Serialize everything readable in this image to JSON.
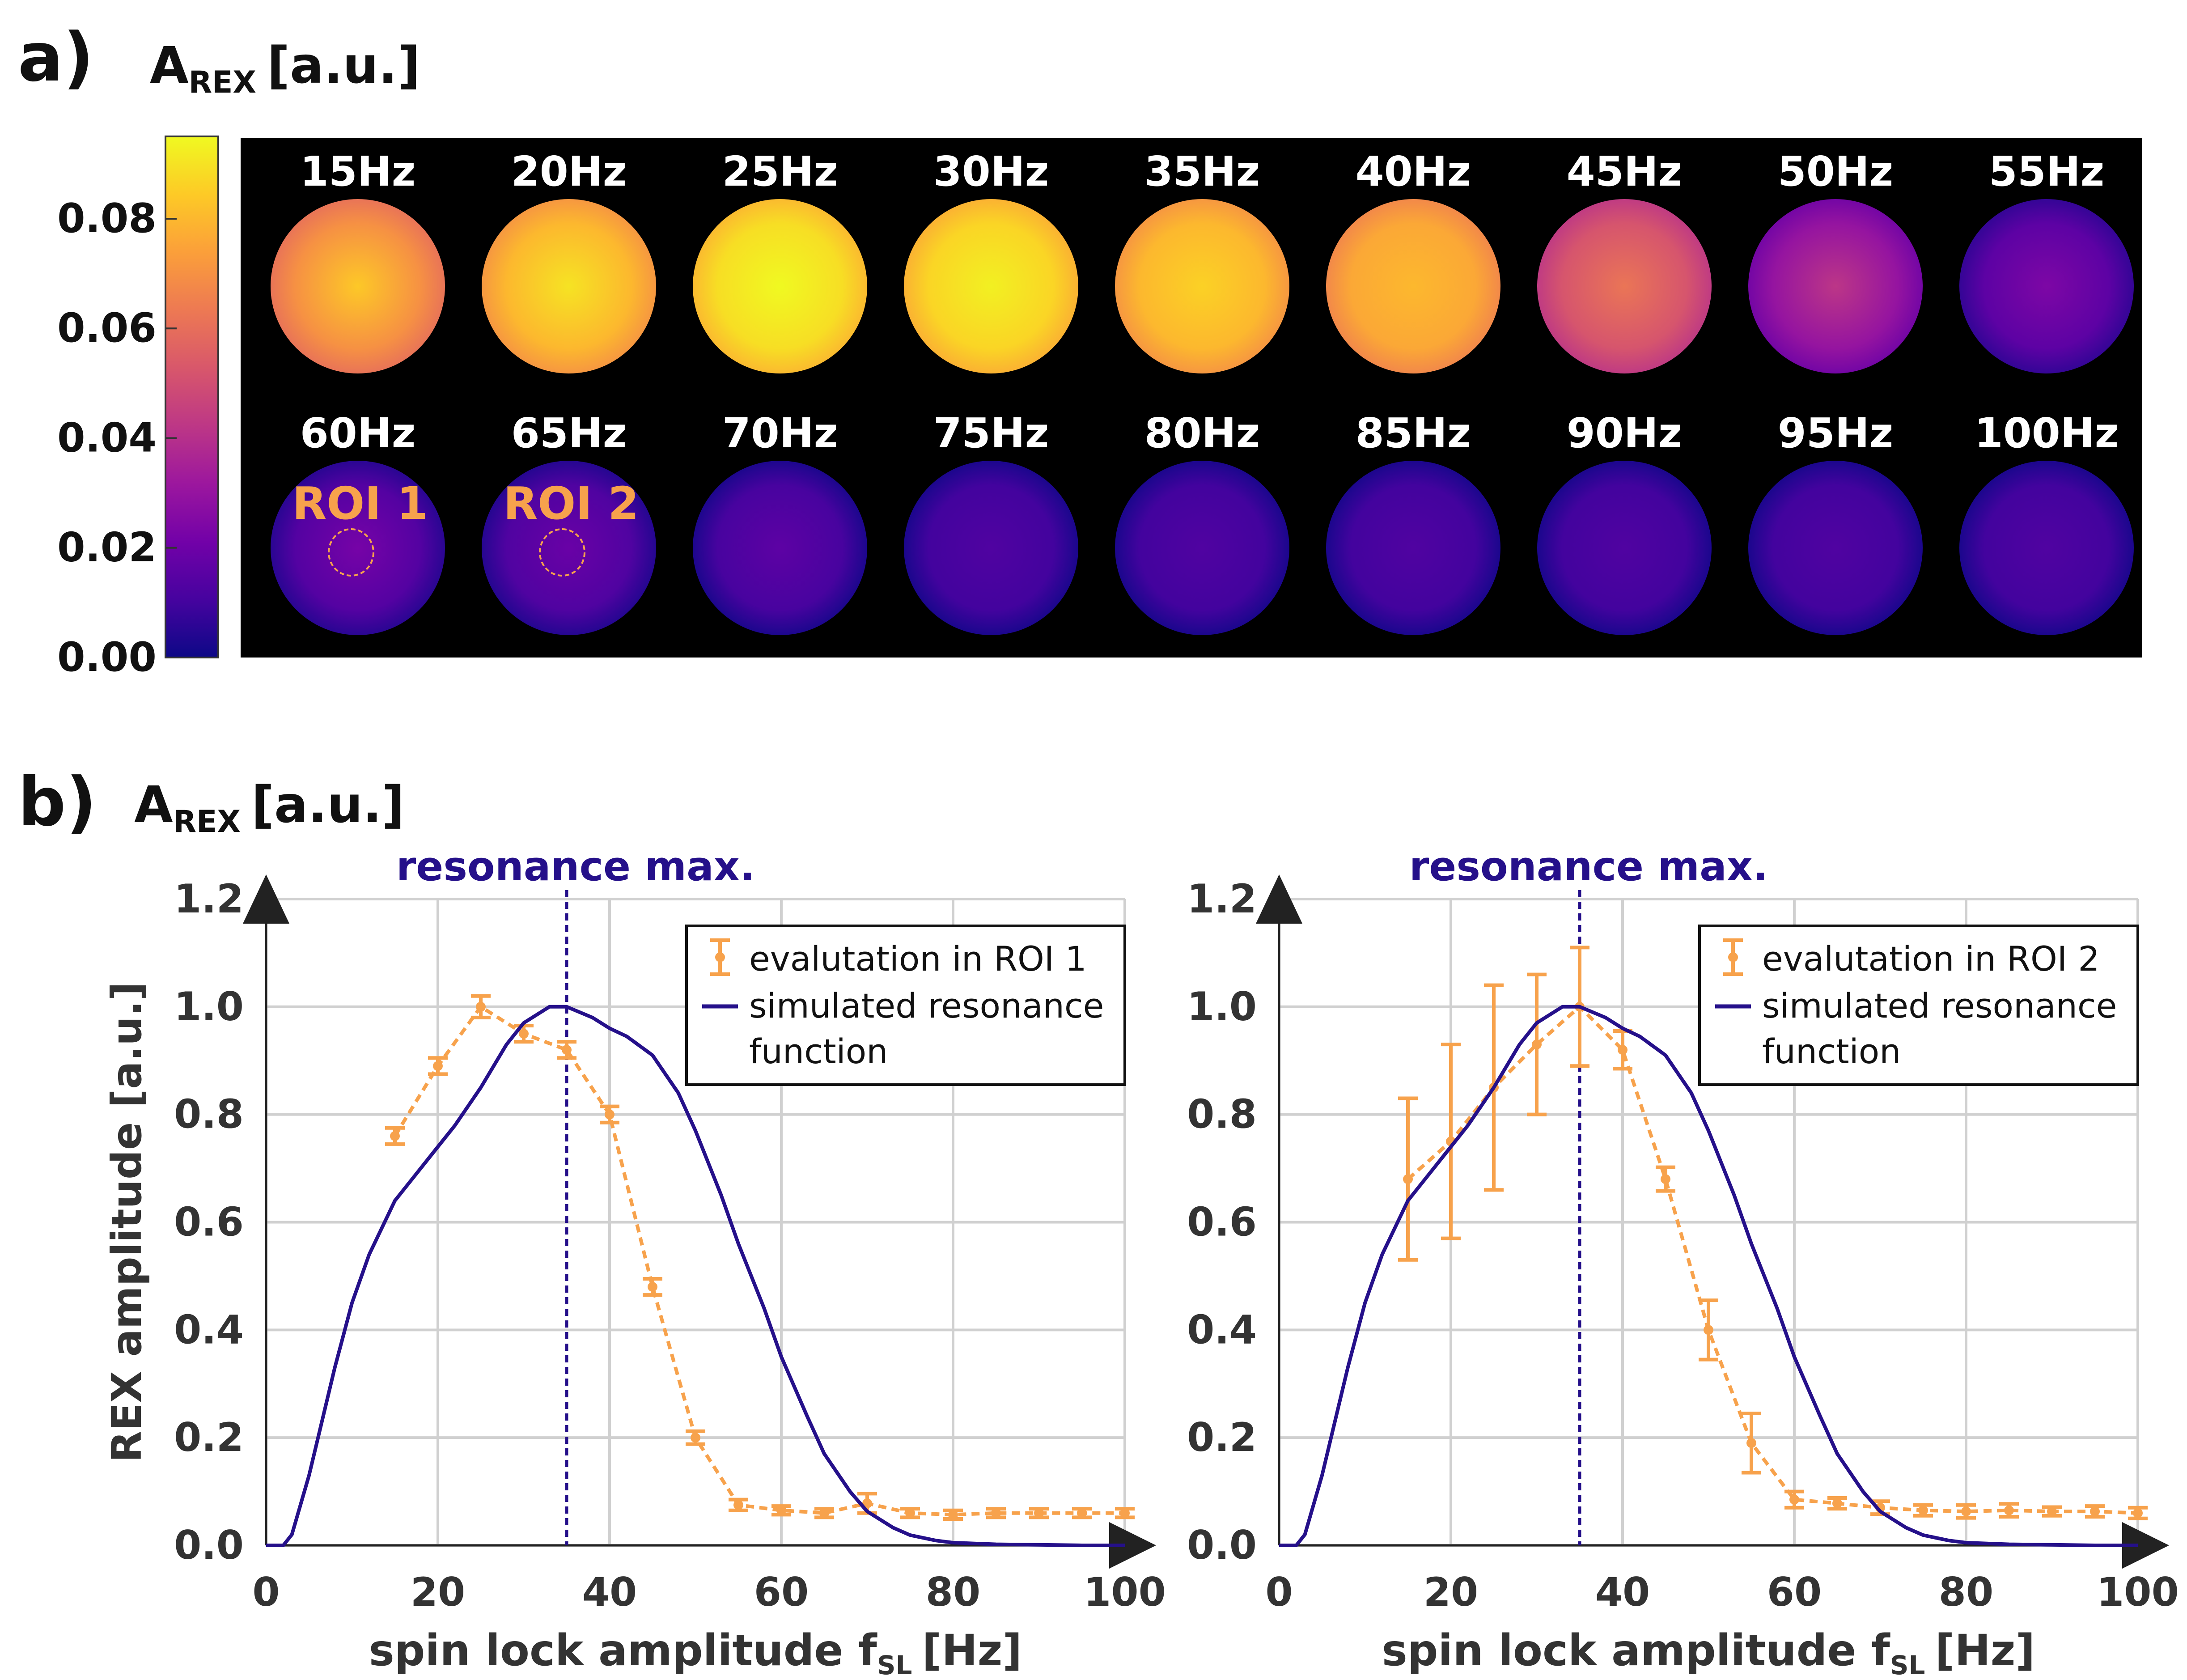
{
  "colors": {
    "orange": "#f7a24c",
    "navy": "#25108a",
    "grid": "#d0d0d0",
    "axis_text": "#333333",
    "panel_bg": "#000000",
    "cmap": [
      "#0d0887",
      "#46039f",
      "#7201a8",
      "#9c179e",
      "#bd3786",
      "#d8576b",
      "#ed7953",
      "#fb9f3a",
      "#fdca26",
      "#f0f921"
    ]
  },
  "panel_a": {
    "label": "a)",
    "quantity_main": "A",
    "quantity_sub": "REX",
    "quantity_unit": "[a.u.]",
    "colorbar_ticks": [
      "0.00",
      "0.02",
      "0.04",
      "0.06",
      "0.08"
    ],
    "colorbar_range": [
      0,
      0.095
    ],
    "row1": [
      {
        "label": "15Hz",
        "value": 0.07,
        "max": 0.084
      },
      {
        "label": "20Hz",
        "value": 0.08,
        "max": 0.09
      },
      {
        "label": "25Hz",
        "value": 0.089,
        "max": 0.097
      },
      {
        "label": "30Hz",
        "value": 0.087,
        "max": 0.093
      },
      {
        "label": "35Hz",
        "value": 0.08,
        "max": 0.086
      },
      {
        "label": "40Hz",
        "value": 0.076,
        "max": 0.08
      },
      {
        "label": "45Hz",
        "value": 0.052,
        "max": 0.062
      },
      {
        "label": "50Hz",
        "value": 0.03,
        "max": 0.042
      },
      {
        "label": "55Hz",
        "value": 0.016,
        "max": 0.024
      }
    ],
    "row2": [
      {
        "label": "60Hz",
        "value": 0.014,
        "max": 0.022
      },
      {
        "label": "65Hz",
        "value": 0.013,
        "max": 0.019
      },
      {
        "label": "70Hz",
        "value": 0.011,
        "max": 0.016
      },
      {
        "label": "75Hz",
        "value": 0.01,
        "max": 0.013
      },
      {
        "label": "80Hz",
        "value": 0.01,
        "max": 0.013
      },
      {
        "label": "85Hz",
        "value": 0.01,
        "max": 0.013
      },
      {
        "label": "90Hz",
        "value": 0.01,
        "max": 0.013
      },
      {
        "label": "95Hz",
        "value": 0.01,
        "max": 0.013
      },
      {
        "label": "100Hz",
        "value": 0.01,
        "max": 0.013
      }
    ],
    "roi_labels": [
      "ROI 1",
      "ROI 2"
    ]
  },
  "panel_b": {
    "label": "b)",
    "quantity_main": "A",
    "quantity_sub": "REX",
    "quantity_unit": "[a.u.]"
  },
  "chart_data": [
    {
      "type": "line",
      "title": "resonance max.",
      "xlabel_main": "spin lock amplitude f",
      "xlabel_sub": "SL",
      "xlabel_unit": "[Hz]",
      "ylabel": "REX amplitude [a.u.]",
      "xlim": [
        0,
        100
      ],
      "ylim": [
        0,
        1.2
      ],
      "xticks": [
        "0",
        "20",
        "40",
        "60",
        "80",
        "100"
      ],
      "yticks": [
        "0.0",
        "0.2",
        "0.4",
        "0.6",
        "0.8",
        "1.0",
        "1.2"
      ],
      "grid": true,
      "legend_position": "top-right",
      "resonance_max_x": 35,
      "series": [
        {
          "name": "evalutation in ROI 1",
          "style": "dashed-errorbar",
          "x": [
            15,
            20,
            25,
            30,
            35,
            40,
            45,
            50,
            55,
            60,
            65,
            70,
            75,
            80,
            85,
            90,
            95,
            100
          ],
          "y": [
            0.76,
            0.89,
            1.0,
            0.95,
            0.92,
            0.8,
            0.48,
            0.2,
            0.075,
            0.065,
            0.06,
            0.078,
            0.06,
            0.057,
            0.06,
            0.06,
            0.06,
            0.06
          ],
          "err": [
            0.015,
            0.015,
            0.02,
            0.015,
            0.015,
            0.015,
            0.015,
            0.012,
            0.01,
            0.008,
            0.008,
            0.018,
            0.008,
            0.008,
            0.008,
            0.008,
            0.008,
            0.008
          ]
        },
        {
          "name": "simulated resonance function",
          "style": "solid",
          "x": [
            0,
            2,
            3,
            5,
            8,
            10,
            12,
            15,
            18,
            20,
            22,
            25,
            28,
            30,
            33,
            35,
            38,
            40,
            42,
            45,
            48,
            50,
            53,
            55,
            58,
            60,
            63,
            65,
            68,
            70,
            73,
            75,
            78,
            80,
            85,
            90,
            95,
            100
          ],
          "y": [
            0,
            0,
            0.02,
            0.13,
            0.33,
            0.45,
            0.54,
            0.64,
            0.7,
            0.74,
            0.78,
            0.85,
            0.93,
            0.97,
            1.0,
            1.0,
            0.98,
            0.96,
            0.945,
            0.91,
            0.84,
            0.77,
            0.65,
            0.56,
            0.44,
            0.35,
            0.24,
            0.17,
            0.1,
            0.063,
            0.033,
            0.019,
            0.009,
            0.005,
            0.002,
            0.001,
            0.0,
            0.0
          ]
        }
      ]
    },
    {
      "type": "line",
      "title": "resonance max.",
      "xlabel_main": "spin lock amplitude f",
      "xlabel_sub": "SL",
      "xlabel_unit": "[Hz]",
      "ylabel": "",
      "xlim": [
        0,
        100
      ],
      "ylim": [
        0,
        1.2
      ],
      "xticks": [
        "0",
        "20",
        "40",
        "60",
        "80",
        "100"
      ],
      "yticks": [
        "0.0",
        "0.2",
        "0.4",
        "0.6",
        "0.8",
        "1.0",
        "1.2"
      ],
      "grid": true,
      "legend_position": "top-right",
      "resonance_max_x": 35,
      "series": [
        {
          "name": "evalutation in ROI 2",
          "style": "dashed-errorbar",
          "x": [
            15,
            20,
            25,
            30,
            35,
            40,
            45,
            50,
            55,
            60,
            65,
            70,
            75,
            80,
            85,
            90,
            95,
            100
          ],
          "y": [
            0.68,
            0.75,
            0.85,
            0.93,
            1.0,
            0.92,
            0.68,
            0.4,
            0.19,
            0.085,
            0.078,
            0.07,
            0.065,
            0.063,
            0.065,
            0.063,
            0.063,
            0.06
          ],
          "err": [
            0.15,
            0.18,
            0.19,
            0.13,
            0.11,
            0.035,
            0.022,
            0.055,
            0.055,
            0.015,
            0.01,
            0.012,
            0.01,
            0.012,
            0.012,
            0.008,
            0.01,
            0.01
          ]
        },
        {
          "name": "simulated resonance function",
          "style": "solid",
          "x": [
            0,
            2,
            3,
            5,
            8,
            10,
            12,
            15,
            18,
            20,
            22,
            25,
            28,
            30,
            33,
            35,
            38,
            40,
            42,
            45,
            48,
            50,
            53,
            55,
            58,
            60,
            63,
            65,
            68,
            70,
            73,
            75,
            78,
            80,
            85,
            90,
            95,
            100
          ],
          "y": [
            0,
            0,
            0.02,
            0.13,
            0.33,
            0.45,
            0.54,
            0.64,
            0.7,
            0.74,
            0.78,
            0.85,
            0.93,
            0.97,
            1.0,
            1.0,
            0.98,
            0.96,
            0.945,
            0.91,
            0.84,
            0.77,
            0.65,
            0.56,
            0.44,
            0.35,
            0.24,
            0.17,
            0.1,
            0.063,
            0.033,
            0.019,
            0.009,
            0.005,
            0.002,
            0.001,
            0.0,
            0.0
          ]
        }
      ]
    }
  ]
}
